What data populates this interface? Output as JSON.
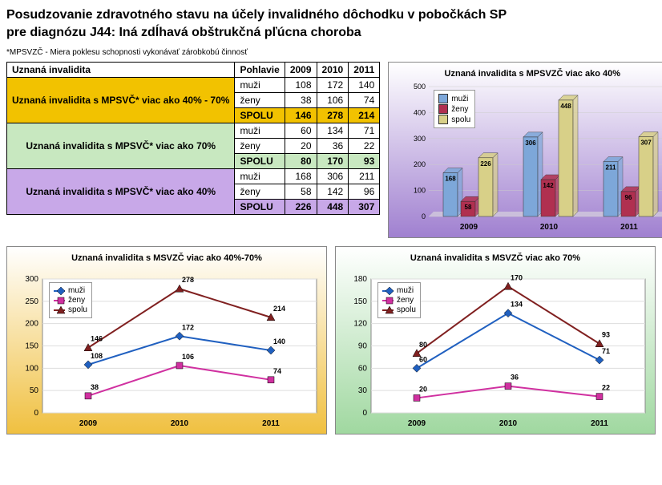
{
  "header": {
    "title1": "Posudzovanie zdravotného stavu na účely invalidného dôchodku v pobočkách SP",
    "title2": "pre diagnózu J44: Iná zdĺhavá obštrukčná pľúcna choroba",
    "footnote": "*MPSVZČ - Miera poklesu schopnosti vykonávať zárobkobú činnosť"
  },
  "table": {
    "columns": [
      "Uznaná invalidita",
      "Pohlavie",
      "2009",
      "2010",
      "2011"
    ],
    "groups": [
      {
        "label": "Uznaná invalidita s MPSVČ* viac ako 40% - 70%",
        "bg": "#f2c200",
        "rows": [
          {
            "p": "muži",
            "v": [
              108,
              172,
              140
            ]
          },
          {
            "p": "ženy",
            "v": [
              38,
              106,
              74
            ]
          },
          {
            "p": "SPOLU",
            "v": [
              146,
              278,
              214
            ],
            "bold": true
          }
        ]
      },
      {
        "label": "Uznaná invalidita s MPSVČ* viac ako 70%",
        "bg": "#c8e8c0",
        "rows": [
          {
            "p": "muži",
            "v": [
              60,
              134,
              71
            ]
          },
          {
            "p": "ženy",
            "v": [
              20,
              36,
              22
            ]
          },
          {
            "p": "SPOLU",
            "v": [
              80,
              170,
              93
            ],
            "bold": true
          }
        ]
      },
      {
        "label": "Uznaná invalidita s MPSVČ* viac ako 40%",
        "bg": "#c8a8e8",
        "rows": [
          {
            "p": "muži",
            "v": [
              168,
              306,
              211
            ]
          },
          {
            "p": "ženy",
            "v": [
              58,
              142,
              96
            ]
          },
          {
            "p": "SPOLU",
            "v": [
              226,
              448,
              307
            ],
            "bold": true
          }
        ]
      }
    ]
  },
  "barChart": {
    "title": "Uznaná invalidita s MPSVZČ viac ako 40%",
    "bg_gradient": [
      "#ffffff",
      "#a080d0"
    ],
    "series": [
      "muži",
      "ženy",
      "spolu"
    ],
    "colors": [
      "#7da7d9",
      "#b03050",
      "#d8d088"
    ],
    "categories": [
      "2009",
      "2010",
      "2011"
    ],
    "data": [
      [
        168,
        58,
        226
      ],
      [
        306,
        142,
        448
      ],
      [
        211,
        96,
        307
      ]
    ],
    "ymax": 500,
    "ystep": 100
  },
  "lineChart1": {
    "title": "Uznaná invalidita s MSVZČ viac ako 40%-70%",
    "bg_gradient": [
      "#ffffff",
      "#f0c040"
    ],
    "series": [
      "muži",
      "ženy",
      "spolu"
    ],
    "colors": [
      "#2060c0",
      "#d030a0",
      "#802020"
    ],
    "markers": [
      "diamond",
      "square",
      "triangle"
    ],
    "categories": [
      "2009",
      "2010",
      "2011"
    ],
    "data": {
      "muži": [
        108,
        172,
        140
      ],
      "ženy": [
        38,
        106,
        74
      ],
      "spolu": [
        146,
        278,
        214
      ]
    },
    "ymax": 300,
    "ystep": 50
  },
  "lineChart2": {
    "title": "Uznaná invalidita s MSVZČ viac ako 70%",
    "bg_gradient": [
      "#ffffff",
      "#a0d8a0"
    ],
    "series": [
      "muži",
      "ženy",
      "spolu"
    ],
    "colors": [
      "#2060c0",
      "#d030a0",
      "#802020"
    ],
    "markers": [
      "diamond",
      "square",
      "triangle"
    ],
    "categories": [
      "2009",
      "2010",
      "2011"
    ],
    "data": {
      "muži": [
        60,
        134,
        71
      ],
      "ženy": [
        20,
        36,
        22
      ],
      "spolu": [
        80,
        170,
        93
      ]
    },
    "ymax": 180,
    "ystep": 30
  }
}
